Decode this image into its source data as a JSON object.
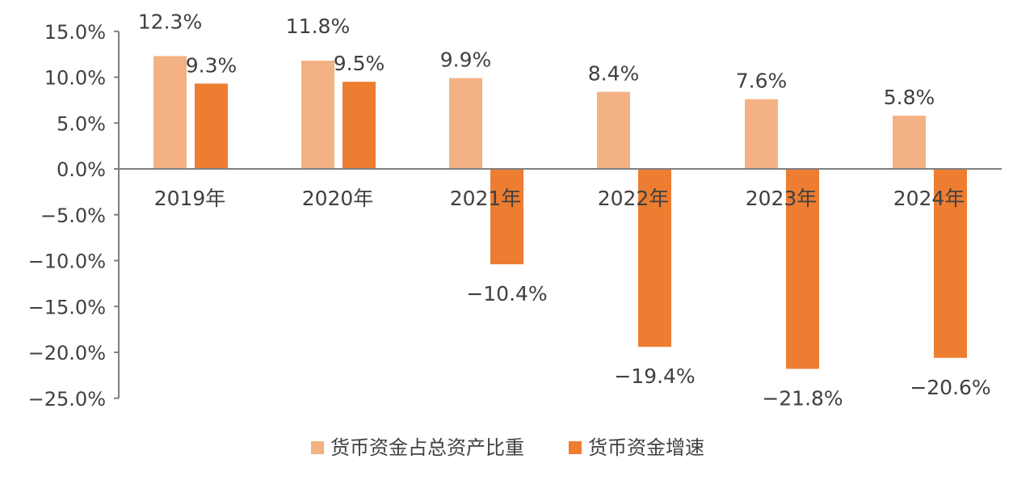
{
  "chart_data": {
    "type": "bar",
    "categories": [
      "2019年",
      "2020年",
      "2021年",
      "2022年",
      "2023年",
      "2024年"
    ],
    "series": [
      {
        "name": "货币资金占总资产比重",
        "values": [
          12.3,
          11.8,
          9.9,
          8.4,
          7.6,
          5.8
        ],
        "labels": [
          "12.3%",
          "11.8%",
          "9.9%",
          "8.4%",
          "7.6%",
          "5.8%"
        ],
        "color": "#F4B183"
      },
      {
        "name": "货币资金增速",
        "values": [
          9.3,
          9.5,
          -10.4,
          -19.4,
          -21.8,
          -20.6
        ],
        "labels": [
          "9.3%",
          "9.5%",
          "−10.4%",
          "−19.4%",
          "−21.8%",
          "−20.6%"
        ],
        "color": "#ED7D31"
      }
    ],
    "ylim": [
      -25,
      15
    ],
    "yticks": [
      15,
      10,
      5,
      0,
      -5,
      -10,
      -15,
      -20,
      -25
    ],
    "ytick_labels": [
      "15.0%",
      "10.0%",
      "5.0%",
      "0.0%",
      "−5.0%",
      "−10.0%",
      "−15.0%",
      "−20.0%",
      "−25.0%"
    ],
    "legend_position": "bottom",
    "grid": false,
    "axis_color": "#808080"
  }
}
